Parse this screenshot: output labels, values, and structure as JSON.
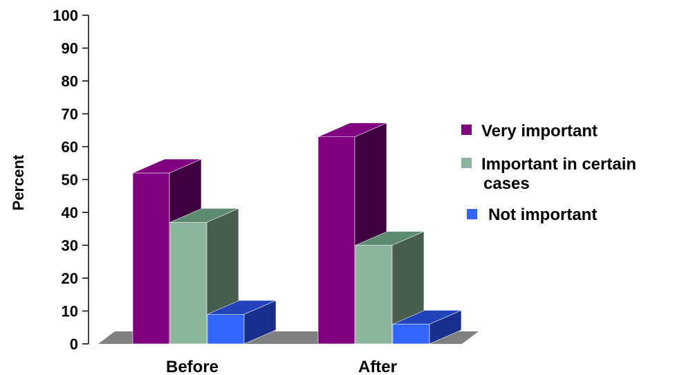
{
  "chart_data": {
    "type": "bar",
    "categories": [
      "Before",
      "After"
    ],
    "series": [
      {
        "name": "Very important",
        "values": [
          52,
          63
        ]
      },
      {
        "name": "Important in certain cases",
        "values": [
          37,
          30
        ]
      },
      {
        "name": "Not important",
        "values": [
          9,
          6
        ]
      }
    ],
    "ylabel": "Percent",
    "xlabel": "",
    "ylim": [
      0,
      100
    ],
    "yticks": [
      0,
      10,
      20,
      30,
      40,
      50,
      60,
      70,
      80,
      90,
      100
    ],
    "legend_position": "right",
    "legend_lines": [
      [
        "Very important"
      ],
      [
        "Important in certain",
        "cases"
      ],
      [
        "Not important"
      ]
    ],
    "colors": {
      "series_front": [
        "#800080",
        "#8cb39b",
        "#3366ff"
      ],
      "series_side": [
        "#3f003f",
        "#475e4f",
        "#1a2f8c"
      ],
      "series_top": [
        "#800080",
        "#5f8a72",
        "#2244bb"
      ],
      "floor": "#808080",
      "axis": "#000000"
    },
    "grid": false,
    "style": "3d-bar"
  }
}
